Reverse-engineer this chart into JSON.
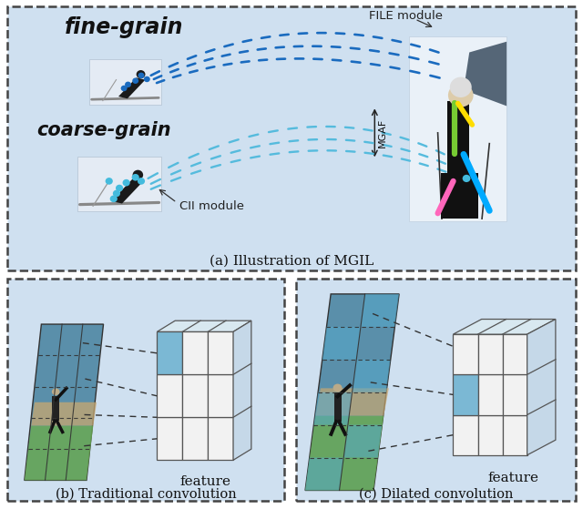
{
  "fig_width": 6.4,
  "fig_height": 5.59,
  "dpi": 100,
  "bg_color": "#cfe0f0",
  "border_color": "#444444",
  "outer_bg": "#ffffff",
  "panel_a": {
    "label": "(a) Illustration of MGIL",
    "fine_grain_label": "fine-grain",
    "coarse_grain_label": "coarse-grain",
    "file_module_label": "FILE module",
    "cii_module_label": "CII module",
    "mgaf_label": "MGAF",
    "curve_color_dark": "#1a6bbf",
    "curve_color_light": "#55bbdd",
    "dot_color_dark": "#1a6bbf",
    "dot_color_light": "#44bbdd"
  },
  "panel_b": {
    "label": "(b) Traditional convolution",
    "feature_label": "feature",
    "highlight_color": "#7bb8d4",
    "img_colors": [
      "#4a8fa8",
      "#5da0b5",
      "#6fb3c4",
      "#7d9e6a",
      "#9ab87a",
      "#b8d492"
    ],
    "grid_color": "#333333"
  },
  "panel_c": {
    "label": "(c) Dilated convolution",
    "feature_label": "feature",
    "highlight_color": "#7bb8d4",
    "stripe_color": "#55aacc",
    "grid_color": "#333333"
  }
}
